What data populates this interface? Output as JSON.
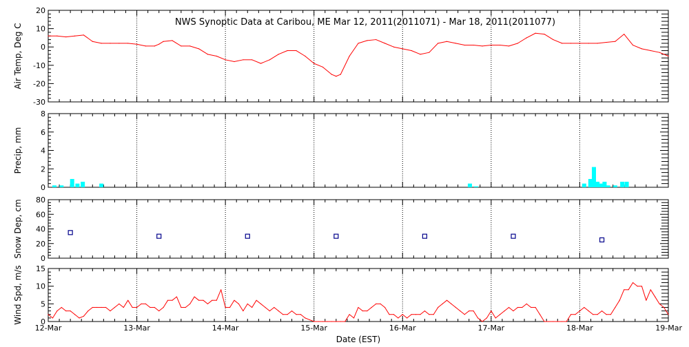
{
  "title": "NWS Synoptic Data at Caribou, ME   Mar 12, 2011(2011071) - Mar 18, 2011(2011077)",
  "xlabel": "Date (EST)",
  "date_labels": [
    "12-Mar",
    "13-Mar",
    "14-Mar",
    "15-Mar",
    "16-Mar",
    "17-Mar",
    "18-Mar",
    "19-Mar"
  ],
  "colors": {
    "line": "#ff0000",
    "precip": "#00ffff",
    "snow": "#00008b",
    "axis": "#000000"
  },
  "chart_data": [
    {
      "id": "airtemp",
      "type": "line",
      "ylabel": "Air Temp, Deg C",
      "ylim": [
        -30,
        20
      ],
      "yticks": [
        -30,
        -20,
        -10,
        0,
        10,
        20
      ],
      "x_unit": "days since 12-Mar 00:00 EST",
      "x": [
        0,
        0.1,
        0.2,
        0.3,
        0.4,
        0.5,
        0.6,
        0.7,
        0.8,
        0.9,
        1.0,
        1.1,
        1.2,
        1.25,
        1.3,
        1.4,
        1.5,
        1.6,
        1.7,
        1.8,
        1.9,
        2.0,
        2.1,
        2.2,
        2.3,
        2.4,
        2.5,
        2.6,
        2.7,
        2.8,
        2.9,
        3.0,
        3.1,
        3.2,
        3.25,
        3.3,
        3.4,
        3.5,
        3.6,
        3.7,
        3.8,
        3.9,
        4.0,
        4.1,
        4.2,
        4.3,
        4.4,
        4.5,
        4.6,
        4.7,
        4.8,
        4.9,
        5.0,
        5.1,
        5.2,
        5.3,
        5.4,
        5.5,
        5.6,
        5.7,
        5.8,
        5.9,
        6.0,
        6.1,
        6.2,
        6.3,
        6.4,
        6.5,
        6.6,
        6.7,
        6.8,
        6.9,
        7.0
      ],
      "values": [
        6,
        6,
        5.5,
        6,
        6.5,
        3,
        2,
        2,
        2,
        2,
        1.5,
        0.5,
        0.5,
        1.5,
        3,
        3.5,
        0.5,
        0.5,
        -1,
        -4,
        -5,
        -7,
        -8,
        -7,
        -7,
        -9,
        -7,
        -4,
        -2,
        -2,
        -5,
        -9,
        -11,
        -15,
        -16,
        -15,
        -5,
        2,
        3.5,
        4,
        2,
        0,
        -1,
        -2,
        -4,
        -3,
        2,
        3,
        2,
        1,
        1,
        0.5,
        1,
        1,
        0.5,
        2,
        5,
        7.5,
        7,
        4,
        2,
        2,
        2,
        2,
        2,
        2.5,
        3,
        7,
        1,
        -1,
        -2,
        -3,
        -5
      ]
    },
    {
      "id": "precip",
      "type": "bar",
      "ylabel": "Precip, mm",
      "ylim": [
        0,
        8
      ],
      "yticks": [
        0,
        2,
        4,
        6,
        8
      ],
      "x_unit": "days since 12-Mar 00:00 EST",
      "x": [
        0.07,
        0.15,
        0.27,
        0.33,
        0.39,
        0.6,
        4.76,
        4.83,
        6.05,
        6.12,
        6.16,
        6.2,
        6.24,
        6.28,
        6.32,
        6.4,
        6.48,
        6.53
      ],
      "values": [
        0.2,
        0.2,
        0.9,
        0.4,
        0.6,
        0.4,
        0.4,
        0.1,
        0.4,
        0.9,
        2.2,
        0.6,
        0.4,
        0.6,
        0.2,
        0.2,
        0.6,
        0.6
      ]
    },
    {
      "id": "snowdep",
      "type": "scatter",
      "ylabel": "Snow Dep, cm",
      "ylim": [
        0,
        80
      ],
      "yticks": [
        0,
        20,
        40,
        60,
        80
      ],
      "x_unit": "days since 12-Mar 00:00 EST",
      "x": [
        0.25,
        1.25,
        2.25,
        3.25,
        4.25,
        5.25,
        6.25
      ],
      "values": [
        35,
        30,
        30,
        30,
        30,
        30,
        25
      ]
    },
    {
      "id": "wind",
      "type": "line",
      "ylabel": "Wind Spd, m/s",
      "ylim": [
        0,
        15
      ],
      "yticks": [
        0,
        5,
        10,
        15
      ],
      "x_unit": "days since 12-Mar 00:00 EST",
      "x": [
        0,
        0.05,
        0.1,
        0.15,
        0.2,
        0.25,
        0.3,
        0.35,
        0.4,
        0.45,
        0.5,
        0.55,
        0.6,
        0.65,
        0.7,
        0.75,
        0.8,
        0.85,
        0.9,
        0.95,
        1.0,
        1.05,
        1.1,
        1.15,
        1.2,
        1.25,
        1.3,
        1.35,
        1.4,
        1.45,
        1.5,
        1.55,
        1.6,
        1.65,
        1.7,
        1.75,
        1.8,
        1.85,
        1.9,
        1.95,
        2.0,
        2.05,
        2.1,
        2.15,
        2.2,
        2.25,
        2.3,
        2.35,
        2.4,
        2.45,
        2.5,
        2.55,
        2.6,
        2.65,
        2.7,
        2.75,
        2.8,
        2.85,
        2.9,
        2.95,
        3.0,
        3.05,
        3.1,
        3.15,
        3.2,
        3.25,
        3.3,
        3.35,
        3.4,
        3.45,
        3.5,
        3.55,
        3.6,
        3.65,
        3.7,
        3.75,
        3.8,
        3.85,
        3.9,
        3.95,
        4.0,
        4.05,
        4.1,
        4.15,
        4.2,
        4.25,
        4.3,
        4.35,
        4.4,
        4.45,
        4.5,
        4.55,
        4.6,
        4.65,
        4.7,
        4.75,
        4.8,
        4.85,
        4.9,
        4.95,
        5.0,
        5.05,
        5.1,
        5.15,
        5.2,
        5.25,
        5.3,
        5.35,
        5.4,
        5.45,
        5.5,
        5.55,
        5.6,
        5.65,
        5.7,
        5.75,
        5.8,
        5.85,
        5.9,
        5.95,
        6.0,
        6.05,
        6.1,
        6.15,
        6.2,
        6.25,
        6.3,
        6.35,
        6.4,
        6.45,
        6.5,
        6.55,
        6.6,
        6.65,
        6.7,
        6.75,
        6.8,
        6.85,
        6.9,
        6.95,
        7.0
      ],
      "values": [
        2,
        1,
        3,
        4,
        3,
        3,
        2,
        1,
        1.5,
        3,
        4,
        4,
        4,
        4,
        3,
        4,
        5,
        4,
        6,
        4,
        4,
        5,
        5,
        4,
        4,
        3,
        4,
        6,
        6,
        7,
        4,
        4,
        5,
        7,
        6,
        6,
        5,
        6,
        6,
        9,
        4,
        4,
        6,
        5,
        3,
        5,
        4,
        6,
        5,
        4,
        3,
        4,
        3,
        2,
        2,
        3,
        2,
        2,
        1,
        0.5,
        0,
        0,
        0,
        0,
        0,
        0,
        0,
        0,
        2,
        1,
        4,
        3,
        3,
        4,
        5,
        5,
        4,
        2,
        2,
        1,
        2,
        1,
        2,
        2,
        2,
        3,
        2,
        2,
        4,
        5,
        6,
        5,
        4,
        3,
        2,
        3,
        3,
        1,
        0,
        1,
        3,
        1,
        2,
        3,
        4,
        3,
        4,
        4,
        5,
        4,
        4,
        2,
        0,
        0,
        0,
        0,
        0,
        0,
        2,
        2,
        3,
        4,
        3,
        2,
        2,
        3,
        2,
        2,
        4,
        6,
        9,
        9,
        11,
        10,
        10,
        6,
        9,
        7,
        5,
        4,
        2
      ]
    }
  ]
}
